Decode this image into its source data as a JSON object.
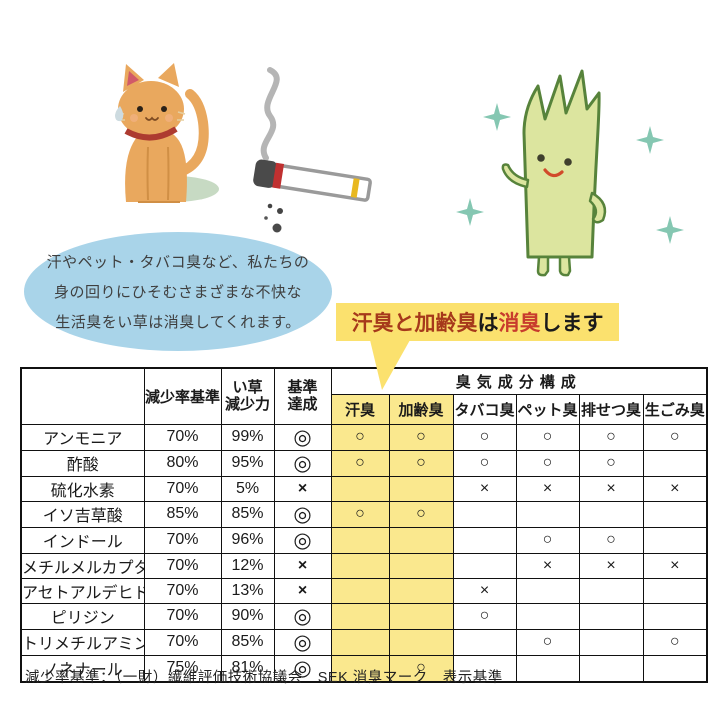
{
  "header": {
    "bubble_lines": [
      "汗やペット・タバコ臭など、私たちの",
      "身の回りにひそむさまざまな不快な",
      "生活臭をい草は消臭してくれます。"
    ],
    "banner": {
      "part1": "汗臭と加齢臭",
      "part2": "は",
      "part3": "消臭",
      "part4": "します"
    }
  },
  "illustrations": {
    "cat": "orange-cat-with-puddle",
    "cigarette": "smoking-cigarette",
    "mascot": "igusa-rush-grass-mascot-with-sparkles"
  },
  "table": {
    "col_headers": {
      "reduction_standard": "減少率基準",
      "igusa_power_line1": "い草",
      "igusa_power_line2": "減少力",
      "achieved_line1": "基準",
      "achieved_line2": "達成",
      "odor_group": "臭気成分構成",
      "odors": [
        "汗臭",
        "加齢臭",
        "タバコ臭",
        "ペット臭",
        "排せつ臭",
        "生ごみ臭"
      ]
    },
    "rows": [
      {
        "name": "アンモニア",
        "standard": "70%",
        "power": "99%",
        "power_red": true,
        "achieved": "◎",
        "marks": [
          "○",
          "○",
          "○",
          "○",
          "○",
          "○"
        ]
      },
      {
        "name": "酢酸",
        "standard": "80%",
        "power": "95%",
        "power_red": true,
        "achieved": "◎",
        "marks": [
          "○",
          "○",
          "○",
          "○",
          "○",
          ""
        ]
      },
      {
        "name": "硫化水素",
        "standard": "70%",
        "power": "5%",
        "power_red": false,
        "achieved": "×",
        "marks": [
          "",
          "",
          "×",
          "×",
          "×",
          "×"
        ]
      },
      {
        "name": "イソ吉草酸",
        "standard": "85%",
        "power": "85%",
        "power_red": true,
        "achieved": "◎",
        "marks": [
          "○",
          "○",
          "",
          "",
          "",
          ""
        ]
      },
      {
        "name": "インドール",
        "standard": "70%",
        "power": "96%",
        "power_red": true,
        "achieved": "◎",
        "marks": [
          "",
          "",
          "",
          "○",
          "○",
          ""
        ]
      },
      {
        "name": "メチルメルカプタン",
        "standard": "70%",
        "power": "12%",
        "power_red": false,
        "achieved": "×",
        "marks": [
          "",
          "",
          "",
          "×",
          "×",
          "×"
        ]
      },
      {
        "name": "アセトアルデヒド",
        "standard": "70%",
        "power": "13%",
        "power_red": false,
        "achieved": "×",
        "marks": [
          "",
          "",
          "×",
          "",
          "",
          ""
        ]
      },
      {
        "name": "ピリジン",
        "standard": "70%",
        "power": "90%",
        "power_red": true,
        "achieved": "◎",
        "marks": [
          "",
          "",
          "○",
          "",
          "",
          ""
        ]
      },
      {
        "name": "トリメチルアミン",
        "standard": "70%",
        "power": "85%",
        "power_red": true,
        "achieved": "◎",
        "marks": [
          "",
          "",
          "",
          "○",
          "",
          "○"
        ]
      },
      {
        "name": "ノネナール",
        "standard": "75%",
        "power": "81%",
        "power_red": true,
        "achieved": "◎",
        "marks": [
          "",
          "○",
          "",
          "",
          "",
          ""
        ]
      }
    ],
    "footnote": "減少率基準：（一財）繊維評価技術協議会　SEK 消臭マーク　表示基準"
  },
  "colors": {
    "banner_yellow": "#fbe16e",
    "highlight_yellow": "#fae88e",
    "bubble_blue": "#a9d4e9",
    "red_value": "#b5433c",
    "banner_dark_red": "#a6391b",
    "banner_red": "#c83c2d",
    "mascot_green": "#dce59f",
    "sparkle_teal": "#85c7b2"
  }
}
